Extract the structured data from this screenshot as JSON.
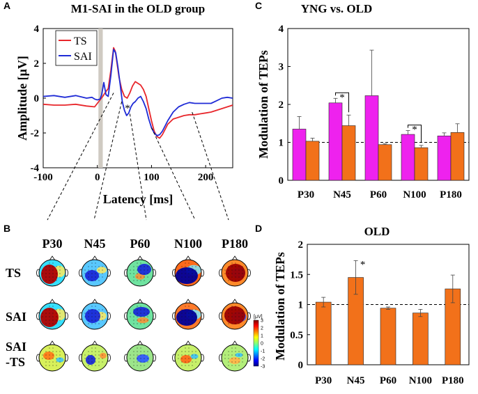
{
  "panels": {
    "A": "A",
    "B": "B",
    "C": "C",
    "D": "D"
  },
  "colors": {
    "ts": "#e8262b",
    "sai": "#1f2bd6",
    "magenta": "#ee22ee",
    "orange": "#f2711a",
    "stim": "#cfcac2"
  },
  "chart_data": [
    {
      "id": "A",
      "type": "line",
      "title": "M1-SAI in the OLD group",
      "xlabel": "Latency [ms]",
      "ylabel": "Amplitude [μV]",
      "xlim": [
        -100,
        250
      ],
      "ylim": [
        -4,
        4
      ],
      "xticks": [
        -100,
        0,
        100,
        200
      ],
      "yticks": [
        4,
        2,
        0,
        -2,
        -4
      ],
      "stimulus_window_ms": [
        2,
        10
      ],
      "legend": [
        "TS",
        "SAI"
      ],
      "annotation": "*",
      "series": [
        {
          "name": "TS",
          "x": [
            -100,
            -80,
            -60,
            -40,
            -20,
            -5,
            0,
            5,
            10,
            15,
            20,
            25,
            30,
            33,
            35,
            40,
            45,
            50,
            55,
            60,
            65,
            70,
            75,
            80,
            85,
            90,
            95,
            100,
            105,
            110,
            115,
            120,
            125,
            130,
            140,
            150,
            160,
            170,
            180,
            190,
            200,
            210,
            220,
            230,
            240,
            250
          ],
          "y": [
            -0.35,
            -0.4,
            -0.4,
            -0.35,
            -0.45,
            -0.5,
            -0.3,
            -0.1,
            0.1,
            0.35,
            0.55,
            1.6,
            2.9,
            2.7,
            2.3,
            1.2,
            0.5,
            0.1,
            0.0,
            0.3,
            0.7,
            0.95,
            0.85,
            0.75,
            0.5,
            0.1,
            -0.6,
            -1.3,
            -1.9,
            -2.2,
            -2.3,
            -2.1,
            -1.8,
            -1.5,
            -1.2,
            -1.1,
            -1.0,
            -0.95,
            -0.95,
            -0.9,
            -0.85,
            -0.8,
            -0.7,
            -0.6,
            -0.5,
            -0.4
          ]
        },
        {
          "name": "SAI",
          "x": [
            -100,
            -80,
            -60,
            -40,
            -20,
            -10,
            -5,
            0,
            5,
            8,
            12,
            16,
            20,
            25,
            30,
            34,
            38,
            42,
            46,
            50,
            54,
            58,
            62,
            66,
            70,
            75,
            80,
            85,
            90,
            95,
            100,
            105,
            110,
            115,
            120,
            125,
            130,
            140,
            150,
            160,
            170,
            180,
            190,
            200,
            210,
            220,
            230,
            240,
            250
          ],
          "y": [
            0.1,
            0.15,
            0.05,
            0.15,
            0.0,
            0.05,
            -0.05,
            -0.1,
            -0.05,
            0.2,
            0.9,
            0.2,
            0.1,
            1.3,
            2.8,
            2.6,
            1.8,
            0.8,
            -0.2,
            -0.7,
            -1.0,
            -0.85,
            -0.5,
            -0.3,
            -0.2,
            0.0,
            0.1,
            -0.2,
            -0.6,
            -1.2,
            -1.7,
            -2.0,
            -2.15,
            -2.1,
            -1.9,
            -1.6,
            -1.3,
            -0.8,
            -0.5,
            -0.35,
            -0.25,
            -0.3,
            -0.3,
            -0.3,
            -0.3,
            -0.15,
            0.0,
            0.05,
            0.0
          ]
        }
      ]
    },
    {
      "id": "C",
      "type": "bar",
      "title": "YNG vs. OLD",
      "xlabel": "",
      "ylabel": "Modulation of TEPs",
      "ylim": [
        0,
        4
      ],
      "yticks": [
        0,
        1,
        2,
        3,
        4
      ],
      "reference_line": 1,
      "categories": [
        "P30",
        "N45",
        "P60",
        "N100",
        "P180"
      ],
      "series": [
        {
          "name": "YNG",
          "values": [
            1.35,
            2.04,
            2.23,
            1.21,
            1.17
          ],
          "errors": [
            0.33,
            0.12,
            1.2,
            0.1,
            0.08
          ]
        },
        {
          "name": "OLD",
          "values": [
            1.03,
            1.44,
            0.94,
            0.86,
            1.26
          ],
          "errors": [
            0.08,
            0.28,
            0.02,
            0.06,
            0.23
          ]
        }
      ],
      "significance": [
        "N45",
        "N100"
      ],
      "star": "*"
    },
    {
      "id": "D",
      "type": "bar",
      "title": "OLD",
      "xlabel": "",
      "ylabel": "Modulation of TEPs",
      "ylim": [
        0,
        2
      ],
      "yticks": [
        "2",
        "1.5",
        "1",
        "0.5",
        "0"
      ],
      "reference_line": 1,
      "categories": [
        "P30",
        "N45",
        "P60",
        "N100",
        "P180"
      ],
      "values": [
        1.04,
        1.45,
        0.94,
        0.86,
        1.26
      ],
      "errors": [
        0.08,
        0.28,
        0.02,
        0.06,
        0.23
      ],
      "significance": [
        "N45"
      ],
      "star": "*"
    }
  ],
  "topomaps": {
    "components": [
      "P30",
      "N45",
      "P60",
      "N100",
      "P180"
    ],
    "rows": [
      "TS",
      "SAI",
      "SAI\n-TS"
    ],
    "row_line1": [
      "TS",
      "SAI",
      "SAI"
    ],
    "row_line2": [
      "",
      "",
      "-TS"
    ]
  },
  "colorbar": {
    "unit": "[μV]",
    "ticks": [
      "3",
      "2",
      "1",
      "0",
      "-1",
      "-2",
      "-3"
    ]
  }
}
